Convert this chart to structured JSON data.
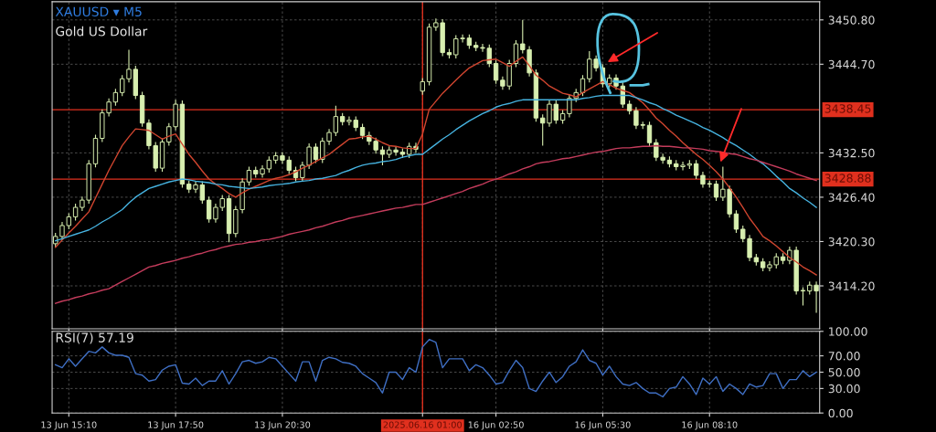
{
  "chart_data": [
    {
      "type": "candlestick",
      "title": "XAUUSD ▾ M5",
      "subtitle": "Gold US Dollar",
      "color": "#d8efb0",
      "grid": true,
      "tick_labels": "y",
      "categories": [
        null,
        null,
        "13 Jun 15:10",
        null,
        null,
        null,
        null,
        null,
        null,
        null,
        null,
        null,
        null,
        null,
        null,
        null,
        null,
        null,
        "13 Jun 17:50",
        null,
        null,
        null,
        null,
        null,
        null,
        null,
        null,
        null,
        null,
        null,
        null,
        null,
        null,
        null,
        "13 Jun 20:30",
        null,
        null,
        null,
        null,
        null,
        null,
        null,
        null,
        null,
        null,
        null,
        null,
        null,
        null,
        null,
        null,
        null,
        null,
        null,
        null,
        "2025.06.16 01:00",
        null,
        null,
        null,
        null,
        null,
        null,
        null,
        null,
        null,
        null,
        "16 Jun 02:50",
        null,
        null,
        null,
        null,
        null,
        null,
        null,
        null,
        null,
        null,
        null,
        null,
        null,
        null,
        null,
        "16 Jun 05:30",
        null,
        null,
        null,
        null,
        null,
        null,
        null,
        null,
        null,
        null,
        null,
        null,
        null,
        null,
        null,
        "16 Jun 08:10",
        null,
        null,
        null,
        null,
        null,
        null,
        null,
        null,
        null,
        null,
        null,
        null,
        null,
        null,
        null,
        null
      ],
      "ylim": [
        3408.3,
        3453.3
      ],
      "yticks": [
        {
          "value": 3450.8,
          "label": "3450.80"
        },
        {
          "value": 3444.7,
          "label": "3444.70"
        },
        {
          "value": 3432.5,
          "label": "3432.50"
        },
        {
          "value": 3426.4,
          "label": "3426.40"
        },
        {
          "value": 3420.3,
          "label": "3420.30"
        },
        {
          "value": 3414.2,
          "label": "3414.20"
        }
      ],
      "ref_lines": [
        {
          "axis": "y",
          "value": 3438.45,
          "label": "3438.45",
          "color": "#e0301e"
        },
        {
          "axis": "y",
          "value": 3428.88,
          "label": "3428.88",
          "color": "#e0301e"
        },
        {
          "axis": "x",
          "value": "2025.06.16 01:00",
          "color": "#e0301e"
        }
      ],
      "ohlc": [
        [
          3420.0,
          3421.5,
          3419.5,
          3421.0
        ],
        [
          3421.0,
          3423.0,
          3420.5,
          3422.5
        ],
        [
          3422.5,
          3424.2,
          3422.0,
          3423.7
        ],
        [
          3423.7,
          3425.5,
          3423.2,
          3425.0
        ],
        [
          3425.0,
          3426.5,
          3424.5,
          3426.0
        ],
        [
          3426.0,
          3431.5,
          3425.5,
          3431.0
        ],
        [
          3431.0,
          3435.0,
          3430.5,
          3434.5
        ],
        [
          3434.5,
          3438.5,
          3434.0,
          3438.0
        ],
        [
          3438.0,
          3440.0,
          3437.5,
          3439.5
        ],
        [
          3439.5,
          3441.3,
          3439.0,
          3440.8
        ],
        [
          3440.8,
          3443.2,
          3440.3,
          3442.7
        ],
        [
          3442.7,
          3446.7,
          3442.2,
          3444.0
        ],
        [
          3444.0,
          3444.5,
          3439.9,
          3440.4
        ],
        [
          3440.4,
          3440.9,
          3436.1,
          3436.6
        ],
        [
          3436.6,
          3437.1,
          3433.0,
          3433.5
        ],
        [
          3433.5,
          3434.0,
          3429.9,
          3430.4
        ],
        [
          3430.4,
          3434.5,
          3429.9,
          3434.0
        ],
        [
          3434.0,
          3436.6,
          3433.5,
          3436.1
        ],
        [
          3436.1,
          3439.8,
          3435.6,
          3439.2
        ],
        [
          3439.2,
          3439.7,
          3427.7,
          3428.2
        ],
        [
          3428.2,
          3428.7,
          3427.0,
          3427.5
        ],
        [
          3427.5,
          3428.6,
          3427.0,
          3428.1
        ],
        [
          3428.1,
          3428.6,
          3425.5,
          3426.0
        ],
        [
          3426.0,
          3426.5,
          3422.9,
          3423.4
        ],
        [
          3423.4,
          3425.5,
          3422.9,
          3425.0
        ],
        [
          3425.0,
          3426.7,
          3424.5,
          3426.2
        ],
        [
          3426.2,
          3426.7,
          3420.2,
          3421.4
        ],
        [
          3421.4,
          3425.2,
          3420.9,
          3424.7
        ],
        [
          3424.7,
          3429.0,
          3424.2,
          3428.5
        ],
        [
          3428.5,
          3430.6,
          3428.0,
          3430.1
        ],
        [
          3430.1,
          3430.6,
          3429.1,
          3429.6
        ],
        [
          3429.6,
          3430.8,
          3429.1,
          3430.3
        ],
        [
          3430.3,
          3432.0,
          3429.8,
          3431.5
        ],
        [
          3431.5,
          3432.6,
          3431.0,
          3432.1
        ],
        [
          3432.1,
          3432.6,
          3431.0,
          3431.5
        ],
        [
          3431.5,
          3432.0,
          3429.6,
          3430.1
        ],
        [
          3430.1,
          3430.6,
          3428.6,
          3429.1
        ],
        [
          3429.1,
          3431.3,
          3428.6,
          3430.8
        ],
        [
          3430.8,
          3433.8,
          3430.3,
          3433.3
        ],
        [
          3433.3,
          3433.8,
          3431.1,
          3431.6
        ],
        [
          3431.6,
          3434.6,
          3431.1,
          3434.1
        ],
        [
          3434.1,
          3435.8,
          3433.6,
          3435.3
        ],
        [
          3435.3,
          3439.0,
          3434.8,
          3437.5
        ],
        [
          3437.5,
          3438.0,
          3436.3,
          3436.8
        ],
        [
          3436.8,
          3437.5,
          3436.3,
          3437.0
        ],
        [
          3437.0,
          3437.5,
          3435.5,
          3436.0
        ],
        [
          3436.0,
          3436.5,
          3434.4,
          3434.9
        ],
        [
          3434.9,
          3435.4,
          3433.6,
          3434.1
        ],
        [
          3434.1,
          3434.6,
          3432.4,
          3432.9
        ],
        [
          3432.9,
          3433.4,
          3430.8,
          3432.3
        ],
        [
          3432.3,
          3433.4,
          3431.8,
          3432.9
        ],
        [
          3432.9,
          3433.4,
          3432.1,
          3432.6
        ],
        [
          3432.6,
          3433.1,
          3431.8,
          3432.3
        ],
        [
          3432.3,
          3433.9,
          3431.8,
          3433.4
        ],
        [
          3433.4,
          3433.9,
          3432.5,
          3433.0
        ],
        [
          3441.0,
          3442.8,
          3440.5,
          3442.3
        ],
        [
          3442.3,
          3450.3,
          3441.8,
          3449.8
        ],
        [
          3449.8,
          3451.0,
          3449.3,
          3450.4
        ],
        [
          3450.4,
          3450.9,
          3445.8,
          3446.3
        ],
        [
          3446.3,
          3446.8,
          3445.5,
          3446.0
        ],
        [
          3446.0,
          3448.7,
          3445.5,
          3448.2
        ],
        [
          3448.2,
          3448.8,
          3447.7,
          3448.3
        ],
        [
          3448.3,
          3448.8,
          3446.8,
          3447.3
        ],
        [
          3447.3,
          3447.8,
          3446.5,
          3447.0
        ],
        [
          3447.0,
          3447.5,
          3446.4,
          3446.9
        ],
        [
          3446.9,
          3447.4,
          3444.3,
          3444.8
        ],
        [
          3444.8,
          3445.3,
          3442.0,
          3442.5
        ],
        [
          3442.5,
          3443.0,
          3441.2,
          3441.7
        ],
        [
          3441.7,
          3445.3,
          3441.2,
          3444.8
        ],
        [
          3444.8,
          3448.0,
          3444.3,
          3447.5
        ],
        [
          3447.5,
          3450.8,
          3446.2,
          3446.7
        ],
        [
          3446.7,
          3447.2,
          3443.0,
          3443.5
        ],
        [
          3443.5,
          3444.0,
          3436.8,
          3437.3
        ],
        [
          3437.3,
          3437.8,
          3433.5,
          3436.6
        ],
        [
          3436.6,
          3439.7,
          3436.1,
          3439.2
        ],
        [
          3439.2,
          3439.7,
          3436.5,
          3437.0
        ],
        [
          3437.0,
          3438.4,
          3436.5,
          3437.9
        ],
        [
          3437.9,
          3440.5,
          3437.4,
          3440.0
        ],
        [
          3440.0,
          3441.3,
          3439.5,
          3440.8
        ],
        [
          3440.8,
          3443.2,
          3440.3,
          3442.7
        ],
        [
          3442.7,
          3446.5,
          3442.2,
          3445.4
        ],
        [
          3445.4,
          3445.9,
          3443.7,
          3444.2
        ],
        [
          3444.2,
          3444.7,
          3441.5,
          3442.0
        ],
        [
          3442.0,
          3443.3,
          3441.5,
          3442.8
        ],
        [
          3442.8,
          3443.3,
          3441.2,
          3441.7
        ],
        [
          3441.7,
          3442.2,
          3438.7,
          3439.2
        ],
        [
          3439.2,
          3439.7,
          3437.8,
          3438.3
        ],
        [
          3438.3,
          3438.8,
          3435.8,
          3436.3
        ],
        [
          3436.3,
          3436.8,
          3435.8,
          3436.3
        ],
        [
          3436.3,
          3436.8,
          3433.4,
          3433.9
        ],
        [
          3433.9,
          3434.4,
          3431.4,
          3431.9
        ],
        [
          3431.9,
          3432.4,
          3431.0,
          3431.5
        ],
        [
          3431.5,
          3432.0,
          3430.5,
          3431.0
        ],
        [
          3431.0,
          3431.5,
          3430.1,
          3430.6
        ],
        [
          3430.6,
          3431.3,
          3430.1,
          3430.8
        ],
        [
          3430.8,
          3431.5,
          3430.3,
          3431.0
        ],
        [
          3431.0,
          3431.5,
          3428.9,
          3429.4
        ],
        [
          3429.4,
          3429.9,
          3427.7,
          3428.2
        ],
        [
          3428.2,
          3428.7,
          3427.7,
          3428.2
        ],
        [
          3428.2,
          3428.7,
          3425.9,
          3426.4
        ],
        [
          3426.4,
          3430.6,
          3425.9,
          3427.5
        ],
        [
          3427.5,
          3428.0,
          3423.6,
          3424.1
        ],
        [
          3424.1,
          3424.6,
          3421.5,
          3422.0
        ],
        [
          3422.0,
          3422.5,
          3420.2,
          3420.7
        ],
        [
          3420.7,
          3421.2,
          3417.6,
          3418.1
        ],
        [
          3418.1,
          3418.6,
          3417.0,
          3417.5
        ],
        [
          3417.5,
          3418.0,
          3416.2,
          3416.7
        ],
        [
          3416.7,
          3417.6,
          3416.2,
          3417.1
        ],
        [
          3417.1,
          3418.7,
          3416.6,
          3418.2
        ],
        [
          3418.2,
          3418.7,
          3417.2,
          3417.7
        ],
        [
          3417.7,
          3419.6,
          3417.2,
          3419.1
        ],
        [
          3419.1,
          3419.6,
          3413.0,
          3413.5
        ],
        [
          3413.5,
          3414.0,
          3411.5,
          3413.5
        ],
        [
          3413.5,
          3414.8,
          3413.0,
          3414.3
        ],
        [
          3414.3,
          3414.8,
          3410.5,
          3413.5
        ]
      ],
      "series": [
        {
          "type": "line",
          "color": "#d0452f",
          "values": [
            3419.5,
            3420.5,
            3421.5,
            3422.4,
            3423.4,
            3424.4,
            3426.3,
            3428.2,
            3430.1,
            3431.8,
            3433.5,
            3434.7,
            3435.8,
            3435.7,
            3435.6,
            3435.0,
            3434.4,
            3434.8,
            3435.1,
            3433.7,
            3432.3,
            3431.2,
            3430.0,
            3428.9,
            3428.2,
            3427.6,
            3426.9,
            3426.4,
            3427.0,
            3427.5,
            3427.9,
            3428.3,
            3428.7,
            3429.0,
            3429.2,
            3429.5,
            3429.9,
            3430.4,
            3430.8,
            3431.3,
            3431.8,
            3432.3,
            3433.0,
            3433.7,
            3434.4,
            3434.5,
            3434.7,
            3434.8,
            3434.4,
            3433.9,
            3433.5,
            3433.4,
            3433.2,
            3433.1,
            3433.1,
            3435.1,
            3438.5,
            3439.6,
            3440.7,
            3441.6,
            3442.5,
            3443.4,
            3444.2,
            3444.7,
            3445.2,
            3445.3,
            3445.4,
            3444.9,
            3444.4,
            3445.1,
            3445.7,
            3444.5,
            3443.2,
            3442.5,
            3441.7,
            3441.2,
            3440.7,
            3440.5,
            3440.2,
            3440.8,
            3441.3,
            3441.8,
            3442.3,
            3441.9,
            3441.4,
            3441.1,
            3440.8,
            3440.1,
            3439.4,
            3438.4,
            3437.3,
            3436.5,
            3435.6,
            3434.8,
            3433.9,
            3433.1,
            3432.3,
            3431.6,
            3430.8,
            3429.9,
            3428.9,
            3427.7,
            3426.4,
            3425.0,
            3423.5,
            3422.3,
            3421.0,
            3420.4,
            3419.7,
            3418.9,
            3418.1,
            3417.5,
            3416.8,
            3416.3,
            3415.7
          ]
        },
        {
          "type": "line",
          "color": "#46b3e0",
          "values": [
            3420.4,
            3420.7,
            3421.0,
            3421.3,
            3421.6,
            3421.9,
            3422.4,
            3423.0,
            3423.5,
            3424.1,
            3424.7,
            3425.6,
            3426.4,
            3427.0,
            3427.6,
            3427.9,
            3428.2,
            3428.5,
            3428.7,
            3428.9,
            3428.8,
            3428.6,
            3428.5,
            3428.4,
            3428.2,
            3428.1,
            3427.9,
            3427.8,
            3427.7,
            3427.6,
            3427.7,
            3427.8,
            3428.0,
            3428.1,
            3428.2,
            3428.3,
            3428.5,
            3428.6,
            3428.7,
            3428.9,
            3429.0,
            3429.2,
            3429.4,
            3429.8,
            3430.1,
            3430.5,
            3430.8,
            3431.0,
            3431.1,
            3431.3,
            3431.4,
            3431.6,
            3431.9,
            3432.1,
            3432.3,
            3432.3,
            3433.0,
            3433.7,
            3434.4,
            3435.0,
            3435.7,
            3436.3,
            3436.9,
            3437.4,
            3437.9,
            3438.3,
            3438.8,
            3439.1,
            3439.3,
            3439.6,
            3439.8,
            3439.8,
            3439.8,
            3439.8,
            3439.8,
            3439.8,
            3439.8,
            3439.8,
            3439.8,
            3440.0,
            3440.1,
            3440.3,
            3440.4,
            3440.4,
            3440.4,
            3440.4,
            3440.4,
            3440.1,
            3439.8,
            3439.4,
            3439.1,
            3438.6,
            3438.2,
            3437.7,
            3437.3,
            3436.9,
            3436.5,
            3436.0,
            3435.6,
            3435.1,
            3434.6,
            3434.0,
            3433.5,
            3432.9,
            3432.3,
            3431.6,
            3431.0,
            3430.2,
            3429.3,
            3428.5,
            3427.6,
            3427.0,
            3426.3,
            3425.7,
            3425.0
          ]
        },
        {
          "type": "line",
          "color": "#c43c5c",
          "values": [
            3411.8,
            3412.1,
            3412.3,
            3412.6,
            3412.8,
            3413.1,
            3413.3,
            3413.6,
            3413.8,
            3414.3,
            3414.8,
            3415.3,
            3415.8,
            3416.3,
            3416.8,
            3417.0,
            3417.3,
            3417.5,
            3417.7,
            3418.0,
            3418.2,
            3418.5,
            3418.7,
            3419.0,
            3419.2,
            3419.5,
            3419.7,
            3419.9,
            3420.0,
            3420.2,
            3420.3,
            3420.5,
            3420.6,
            3420.8,
            3421.0,
            3421.3,
            3421.5,
            3421.7,
            3421.9,
            3422.2,
            3422.4,
            3422.7,
            3423.0,
            3423.2,
            3423.5,
            3423.7,
            3423.9,
            3424.1,
            3424.3,
            3424.5,
            3424.7,
            3424.9,
            3425.0,
            3425.2,
            3425.4,
            3425.4,
            3425.7,
            3426.0,
            3426.3,
            3426.6,
            3426.9,
            3427.2,
            3427.6,
            3427.9,
            3428.2,
            3428.6,
            3428.9,
            3429.2,
            3429.6,
            3429.9,
            3430.3,
            3430.6,
            3431.0,
            3431.2,
            3431.3,
            3431.5,
            3431.7,
            3431.8,
            3432.0,
            3432.2,
            3432.4,
            3432.6,
            3432.7,
            3432.9,
            3433.1,
            3433.2,
            3433.2,
            3433.3,
            3433.4,
            3433.4,
            3433.5,
            3433.4,
            3433.4,
            3433.3,
            3433.2,
            3433.2,
            3433.1,
            3433.0,
            3432.8,
            3432.7,
            3432.6,
            3432.4,
            3432.3,
            3432.0,
            3431.7,
            3431.5,
            3431.2,
            3430.9,
            3430.6,
            3430.3,
            3430.0,
            3429.6,
            3429.3,
            3429.0,
            3428.7
          ]
        }
      ]
    },
    {
      "type": "line",
      "title": "RSI(7) 57.19",
      "grid": true,
      "categories": [
        null,
        null,
        "13 Jun 15:10",
        null,
        null,
        null,
        null,
        null,
        null,
        null,
        null,
        null,
        null,
        null,
        null,
        null,
        null,
        null,
        "13 Jun 17:50",
        null,
        null,
        null,
        null,
        null,
        null,
        null,
        null,
        null,
        null,
        null,
        null,
        null,
        null,
        null,
        "13 Jun 20:30",
        null,
        null,
        null,
        null,
        null,
        null,
        null,
        null,
        null,
        null,
        null,
        null,
        null,
        null,
        null,
        null,
        null,
        null,
        null,
        null,
        "2025.06.16 01:00",
        null,
        null,
        null,
        null,
        null,
        null,
        null,
        null,
        null,
        null,
        "16 Jun 02:50",
        null,
        null,
        null,
        null,
        null,
        null,
        null,
        null,
        null,
        null,
        null,
        null,
        null,
        null,
        null,
        "16 Jun 05:30",
        null,
        null,
        null,
        null,
        null,
        null,
        null,
        null,
        null,
        null,
        null,
        null,
        null,
        null,
        null,
        "16 Jun 08:10",
        null,
        null,
        null,
        null,
        null,
        null,
        null,
        null,
        null,
        null,
        null,
        null,
        null,
        null,
        null,
        null
      ],
      "ylim": [
        0,
        100
      ],
      "yticks": [
        {
          "value": 100,
          "label": "100.00"
        },
        {
          "value": 70,
          "label": "70.00"
        },
        {
          "value": 50,
          "label": "50.00"
        },
        {
          "value": 30,
          "label": "30.00"
        },
        {
          "value": 0,
          "label": "0.00"
        }
      ],
      "ref_lines": [
        {
          "axis": "x",
          "value": "2025.06.16 01:00",
          "color": "#e0301e"
        }
      ],
      "series": [
        {
          "color": "#3f6fc4",
          "values": [
            59.1,
            55.5,
            66.4,
            57.3,
            66.4,
            75.5,
            73.6,
            80.9,
            73.6,
            70.7,
            70.7,
            68.2,
            48.2,
            46.4,
            39.1,
            40.9,
            52.5,
            57.3,
            59.1,
            36.5,
            35.5,
            42.7,
            33.6,
            39.1,
            39.1,
            51.8,
            35.5,
            48.2,
            62.7,
            64.5,
            60.9,
            62.7,
            68.2,
            66.4,
            57.3,
            48.2,
            39.1,
            62.7,
            62.7,
            39.1,
            64.5,
            68.2,
            66.4,
            62.0,
            60.9,
            57.3,
            48.2,
            42.7,
            37.3,
            24.5,
            50.0,
            50.0,
            40.9,
            55.5,
            50.0,
            80.9,
            90.0,
            86.4,
            55.5,
            66.4,
            66.4,
            66.4,
            51.8,
            59.1,
            55.5,
            46.4,
            35.5,
            37.3,
            51.8,
            64.5,
            55.5,
            30.0,
            26.4,
            39.1,
            50.0,
            37.3,
            44.5,
            57.3,
            62.7,
            77.3,
            64.5,
            60.9,
            46.4,
            57.3,
            44.5,
            35.5,
            33.6,
            37.3,
            30.0,
            24.5,
            24.5,
            19.8,
            30.0,
            31.8,
            44.5,
            35.5,
            22.7,
            42.7,
            35.5,
            44.5,
            26.4,
            35.5,
            30.0,
            22.7,
            35.5,
            31.8,
            33.6,
            48.2,
            48.2,
            30.0,
            40.9,
            40.9,
            51.8,
            44.5,
            50.0
          ]
        }
      ]
    }
  ]
}
